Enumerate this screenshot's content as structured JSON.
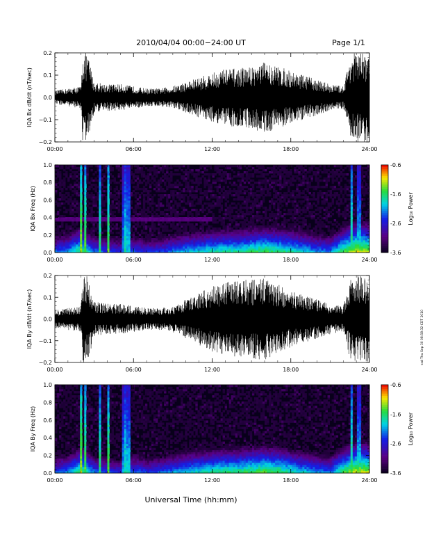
{
  "header": {
    "title": "2010/04/04   00:00−24:00 UT",
    "page": "Page 1/1"
  },
  "side_note": "ssd Thu Sep 30 08:58:32 CDT 2010",
  "footer": {
    "xlabel": "Universal Time (hh:mm)"
  },
  "x_ticks": [
    "00:00",
    "06:00",
    "12:00",
    "18:00",
    "24:00"
  ],
  "colorbar": {
    "label": "Log₁₀ Power",
    "ticks": [
      "-0.6",
      "-1.6",
      "-2.6",
      "-3.6"
    ],
    "range": [
      -3.6,
      -0.6
    ]
  },
  "chart_data": [
    {
      "type": "line",
      "panel": "IQA Bx waveform",
      "ylabel": "IQA Bx dB/dt (nT/sec)",
      "xlabel": "",
      "xlim": [
        0,
        24
      ],
      "ylim": [
        -0.2,
        0.2
      ],
      "y_ticks": [
        "0.2",
        "0.1",
        "0.0",
        "−0.1",
        "−0.2"
      ],
      "series": [
        {
          "x": [
            0,
            1,
            2,
            2.1,
            2.5,
            3,
            4,
            5,
            6,
            7,
            8,
            9,
            10,
            11,
            12,
            13,
            14,
            15,
            16,
            17,
            18,
            19,
            20,
            21,
            22,
            22.6,
            23,
            24
          ],
          "amplitude": [
            0.03,
            0.04,
            0.05,
            0.2,
            0.2,
            0.07,
            0.06,
            0.06,
            0.05,
            0.04,
            0.04,
            0.05,
            0.07,
            0.09,
            0.11,
            0.13,
            0.13,
            0.14,
            0.16,
            0.14,
            0.12,
            0.1,
            0.08,
            0.06,
            0.05,
            0.2,
            0.2,
            0.2
          ]
        }
      ]
    },
    {
      "type": "heatmap",
      "panel": "IQA Bx spectrogram",
      "ylabel": "IQA Bx Freq (Hz)",
      "xlabel": "",
      "xlim": [
        0,
        24
      ],
      "ylim": [
        0.0,
        1.0
      ],
      "y_ticks": [
        "1.0",
        "0.8",
        "0.6",
        "0.4",
        "0.2",
        "0.0"
      ],
      "spectral_line_hz": 0.38,
      "bright_times": [
        2.0,
        2.3,
        3.4,
        4.1,
        5.3,
        5.6,
        22.6,
        23.2
      ],
      "low_band_level": [
        -2.4,
        -2.2,
        -1.6,
        -2.3,
        -2.5,
        -2.6,
        -2.4,
        -2.6,
        -2.5,
        -2.3,
        -2.1,
        -2.0,
        -1.9,
        -1.8,
        -1.8,
        -1.7,
        -1.6,
        -1.7,
        -1.8,
        -2.0,
        -2.2,
        -2.3,
        -1.6,
        -1.2,
        -1.3
      ]
    },
    {
      "type": "line",
      "panel": "IQA By waveform",
      "ylabel": "IQA By dB/dt (nT/sec)",
      "xlabel": "",
      "xlim": [
        0,
        24
      ],
      "ylim": [
        -0.2,
        0.2
      ],
      "y_ticks": [
        "0.2",
        "0.1",
        "0.0",
        "−0.1",
        "−0.2"
      ],
      "series": [
        {
          "x": [
            0,
            1,
            2,
            2.1,
            2.5,
            3,
            4,
            5,
            6,
            7,
            8,
            9,
            10,
            11,
            12,
            13,
            14,
            15,
            16,
            17,
            18,
            19,
            20,
            21,
            22,
            22.6,
            23,
            24
          ],
          "amplitude": [
            0.04,
            0.05,
            0.06,
            0.2,
            0.2,
            0.08,
            0.07,
            0.07,
            0.06,
            0.05,
            0.05,
            0.06,
            0.09,
            0.12,
            0.15,
            0.17,
            0.18,
            0.18,
            0.19,
            0.16,
            0.13,
            0.11,
            0.09,
            0.07,
            0.06,
            0.2,
            0.2,
            0.2
          ]
        }
      ]
    },
    {
      "type": "heatmap",
      "panel": "IQA By spectrogram",
      "ylabel": "IQA By Freq (Hz)",
      "xlabel": "Universal Time (hh:mm)",
      "xlim": [
        0,
        24
      ],
      "ylim": [
        0.0,
        1.0
      ],
      "y_ticks": [
        "1.0",
        "0.8",
        "0.6",
        "0.4",
        "0.2",
        "0.0"
      ],
      "bright_times": [
        2.0,
        2.3,
        3.4,
        4.1,
        5.3,
        5.6,
        22.6,
        23.2
      ],
      "low_band_level": [
        -2.4,
        -2.2,
        -1.6,
        -2.3,
        -2.5,
        -2.6,
        -2.3,
        -2.5,
        -2.4,
        -2.2,
        -2.0,
        -1.9,
        -1.8,
        -1.7,
        -1.7,
        -1.6,
        -1.5,
        -1.6,
        -1.8,
        -2.0,
        -2.2,
        -2.3,
        -1.6,
        -1.2,
        -1.3
      ]
    }
  ]
}
